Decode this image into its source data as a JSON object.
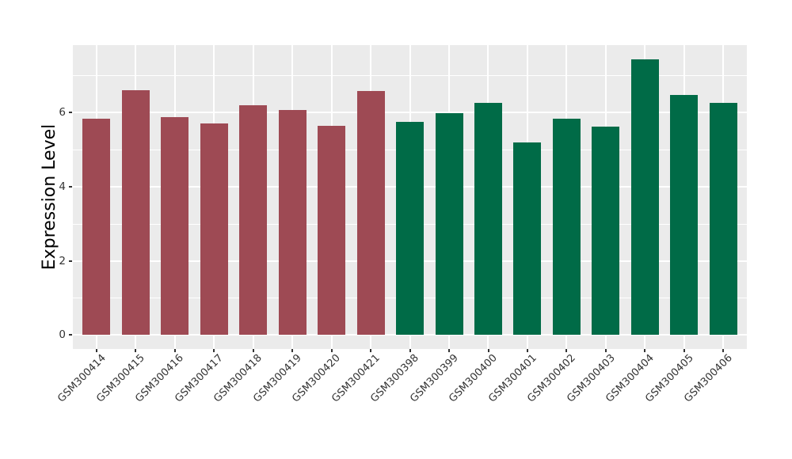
{
  "chart_data": {
    "type": "bar",
    "title": "",
    "xlabel": "",
    "ylabel": "Expression Level",
    "categories": [
      "GSM300414",
      "GSM300415",
      "GSM300416",
      "GSM300417",
      "GSM300418",
      "GSM300419",
      "GSM300420",
      "GSM300421",
      "GSM300398",
      "GSM300399",
      "GSM300400",
      "GSM300401",
      "GSM300402",
      "GSM300403",
      "GSM300404",
      "GSM300405",
      "GSM300406"
    ],
    "values": [
      5.83,
      6.59,
      5.87,
      5.7,
      6.19,
      6.06,
      5.64,
      6.58,
      5.75,
      5.97,
      6.26,
      5.19,
      5.84,
      5.62,
      7.44,
      6.47,
      6.26
    ],
    "bar_group_index": [
      0,
      0,
      0,
      0,
      0,
      0,
      0,
      0,
      1,
      1,
      1,
      1,
      1,
      1,
      1,
      1,
      1
    ],
    "series": [
      {
        "name": "maroon-group",
        "color": "#9E4A54",
        "categories": [
          "GSM300414",
          "GSM300415",
          "GSM300416",
          "GSM300417",
          "GSM300418",
          "GSM300419",
          "GSM300420",
          "GSM300421"
        ]
      },
      {
        "name": "green-group",
        "color": "#006B47",
        "categories": [
          "GSM300398",
          "GSM300399",
          "GSM300400",
          "GSM300401",
          "GSM300402",
          "GSM300403",
          "GSM300404",
          "GSM300405",
          "GSM300406"
        ]
      }
    ],
    "group_colors": [
      "#9E4A54",
      "#006B47"
    ],
    "yticks": [
      0,
      2,
      4,
      6
    ],
    "ytick_labels": [
      "0",
      "2",
      "4",
      "6"
    ],
    "minor_yticks": [
      1,
      3,
      5,
      7
    ],
    "ylim": [
      -0.37,
      7.81
    ],
    "x_label_rotation_deg": 45,
    "legend": "none",
    "grid": "white-major-and-minor-on-gray",
    "panel_bg": "#EBEBEB",
    "grid_color": "#FFFFFF",
    "axis_text_color": "#333333",
    "axis_title_color": "#000000"
  }
}
